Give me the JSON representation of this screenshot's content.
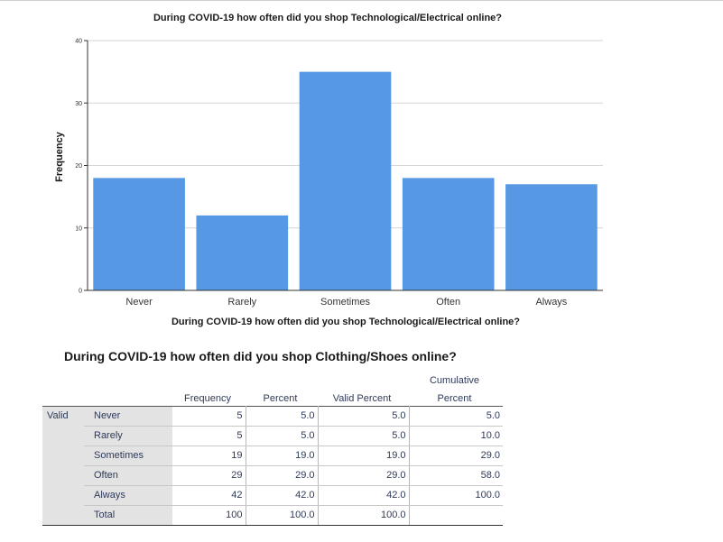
{
  "chart_data": {
    "type": "bar",
    "title": "During COVID-19 how often did you shop Technological/Electrical online?",
    "xlabel": "During COVID-19 how often did you shop Technological/Electrical online?",
    "ylabel": "Frequency",
    "categories": [
      "Never",
      "Rarely",
      "Sometimes",
      "Often",
      "Always"
    ],
    "values": [
      18,
      12,
      35,
      18,
      17
    ],
    "ylim": [
      0,
      40
    ],
    "yticks": [
      "0",
      "10",
      "20",
      "30",
      "40"
    ],
    "grid": true,
    "bar_color": "#5698e3"
  },
  "table": {
    "title": "During COVID-19 how often did you shop Clothing/Shoes online?",
    "headers": {
      "frequency": "Frequency",
      "percent": "Percent",
      "valid_percent": "Valid Percent",
      "cumulative_line1": "Cumulative",
      "cumulative_line2": "Percent"
    },
    "group_label": "Valid",
    "rows": [
      {
        "label": "Never",
        "frequency": "5",
        "percent": "5.0",
        "valid_percent": "5.0",
        "cumulative": "5.0"
      },
      {
        "label": "Rarely",
        "frequency": "5",
        "percent": "5.0",
        "valid_percent": "5.0",
        "cumulative": "10.0"
      },
      {
        "label": "Sometimes",
        "frequency": "19",
        "percent": "19.0",
        "valid_percent": "19.0",
        "cumulative": "29.0"
      },
      {
        "label": "Often",
        "frequency": "29",
        "percent": "29.0",
        "valid_percent": "29.0",
        "cumulative": "58.0"
      },
      {
        "label": "Always",
        "frequency": "42",
        "percent": "42.0",
        "valid_percent": "42.0",
        "cumulative": "100.0"
      },
      {
        "label": "Total",
        "frequency": "100",
        "percent": "100.0",
        "valid_percent": "100.0",
        "cumulative": ""
      }
    ]
  }
}
